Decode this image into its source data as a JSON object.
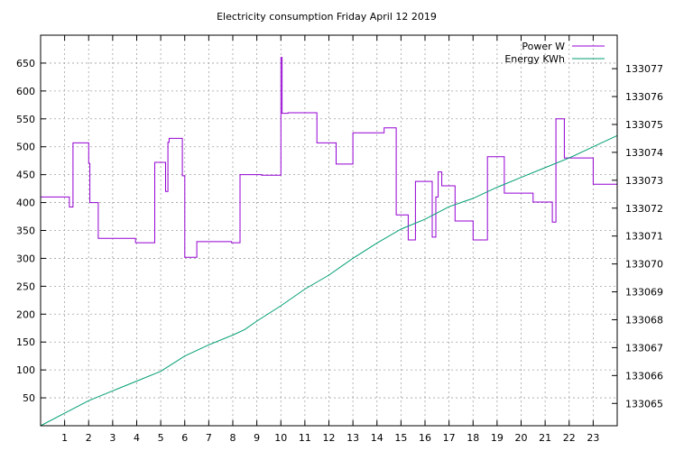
{
  "chart_data": {
    "type": "line",
    "title": "Electricity consumption Friday April 12 2019",
    "xlabel": "",
    "ylabel": "",
    "y2label": "",
    "grid": true,
    "legend_position": "top-right",
    "xlim": [
      0,
      24
    ],
    "ylim": [
      0,
      700
    ],
    "y2lim": [
      133064.2,
      133078.2
    ],
    "x_ticks": [
      1,
      2,
      3,
      4,
      5,
      6,
      7,
      8,
      9,
      10,
      11,
      12,
      13,
      14,
      15,
      16,
      17,
      18,
      19,
      20,
      21,
      22,
      23
    ],
    "y_ticks": [
      50,
      100,
      150,
      200,
      250,
      300,
      350,
      400,
      450,
      500,
      550,
      600,
      650
    ],
    "y2_ticks": [
      133065,
      133066,
      133067,
      133068,
      133069,
      133070,
      133071,
      133072,
      133073,
      133074,
      133075,
      133076,
      133077
    ],
    "series": [
      {
        "name": "Power W",
        "axis": "left",
        "step": true,
        "color": "#9400d3",
        "x": [
          0,
          1.2,
          1.35,
          2,
          2.05,
          2.4,
          3.5,
          3.95,
          4.75,
          5.2,
          5.3,
          5.35,
          5.45,
          5.9,
          6,
          6.5,
          7.2,
          7.95,
          8.3,
          8.5,
          9.2,
          9.5,
          10.0,
          10.05,
          10.3,
          10.9,
          11.5,
          12.3,
          13.0,
          13.7,
          14.3,
          14.8,
          15.3,
          15.6,
          16.3,
          16.45,
          16.55,
          16.7,
          17.25,
          17.5,
          18.0,
          18.6,
          19.3,
          19.9,
          20.5,
          21.3,
          21.45,
          21.8,
          22.5,
          23,
          24
        ],
        "y": [
          410,
          392,
          507,
          470,
          400,
          336,
          336,
          328,
          472,
          420,
          508,
          515,
          515,
          448,
          302,
          330,
          330,
          328,
          450,
          450,
          449,
          449,
          660,
          560,
          561,
          561,
          507,
          469,
          525,
          525,
          534,
          378,
          333,
          438,
          338,
          410,
          455,
          430,
          367,
          367,
          333,
          482,
          417,
          417,
          401,
          365,
          550,
          480,
          480,
          433,
          433
        ]
      },
      {
        "name": "Energy KWh",
        "axis": "right",
        "step": false,
        "color": "#009e73",
        "x": [
          0,
          1,
          2,
          3,
          4,
          5,
          6,
          7,
          8,
          8.5,
          9,
          10,
          11,
          12,
          13,
          14,
          15,
          16,
          17,
          18,
          19,
          20,
          21,
          22,
          23,
          24
        ],
        "y": [
          133064.2,
          133064.65,
          133065.1,
          133065.45,
          133065.8,
          133066.15,
          133066.7,
          133067.1,
          133067.45,
          133067.65,
          133067.95,
          133068.5,
          133069.1,
          133069.6,
          133070.2,
          133070.75,
          133071.25,
          133071.6,
          133072.05,
          133072.35,
          133072.75,
          133073.1,
          133073.45,
          133073.8,
          133074.2,
          133074.6
        ]
      }
    ]
  }
}
